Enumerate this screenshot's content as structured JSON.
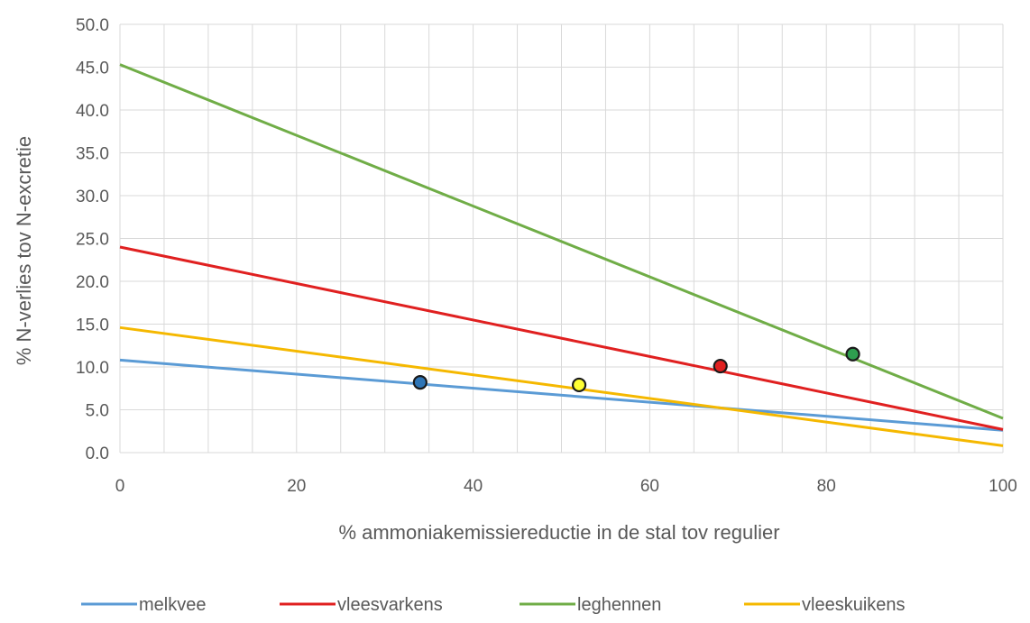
{
  "chart_data": {
    "type": "line",
    "title": "",
    "xlabel": "% ammoniakemissiereductie in de stal tov regulier",
    "ylabel": "% N-verlies tov N-excretie",
    "xlim": [
      0,
      100
    ],
    "ylim": [
      0,
      50
    ],
    "x_major_ticks": [
      0,
      20,
      40,
      60,
      80,
      100
    ],
    "y_ticks": [
      0,
      5,
      10,
      15,
      20,
      25,
      30,
      35,
      40,
      45,
      50
    ],
    "y_tick_labels": [
      "0.0",
      "5.0",
      "10.0",
      "15.0",
      "20.0",
      "25.0",
      "30.0",
      "35.0",
      "40.0",
      "45.0",
      "50.0"
    ],
    "x_minor_step": 5,
    "grid": true,
    "legend_position": "bottom",
    "series": [
      {
        "name": "melkvee",
        "color": "#5b9bd5",
        "x": [
          0,
          100
        ],
        "y": [
          10.8,
          2.6
        ],
        "marker": {
          "x": 34,
          "y": 8.2,
          "color": "#2e75b6"
        }
      },
      {
        "name": "vleesvarkens",
        "color": "#e02020",
        "x": [
          0,
          100
        ],
        "y": [
          24.0,
          2.7
        ],
        "marker": {
          "x": 68,
          "y": 10.1,
          "color": "#e02020"
        }
      },
      {
        "name": "leghennen",
        "color": "#70ad47",
        "x": [
          0,
          100
        ],
        "y": [
          45.3,
          4.0
        ],
        "marker": {
          "x": 83,
          "y": 11.5,
          "color": "#2e9e4f"
        }
      },
      {
        "name": "vleeskuikens",
        "color": "#f5b800",
        "x": [
          0,
          100
        ],
        "y": [
          14.6,
          0.8
        ],
        "marker": {
          "x": 52,
          "y": 7.9,
          "color": "#ffff33"
        }
      }
    ]
  }
}
